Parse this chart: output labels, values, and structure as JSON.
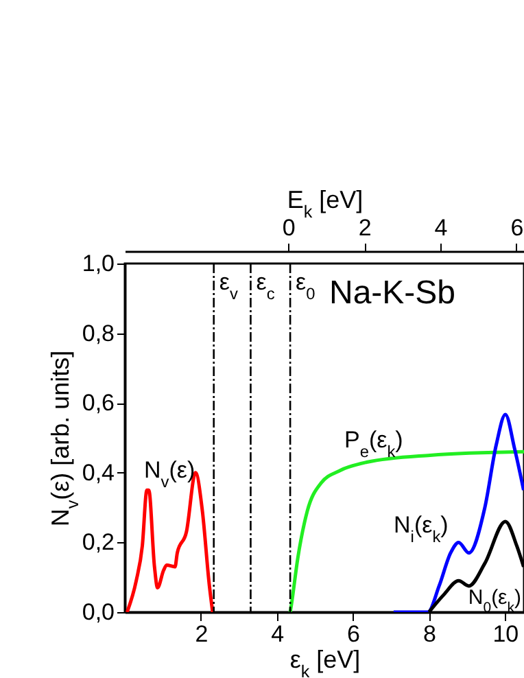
{
  "chart_data": {
    "type": "line",
    "xlabel": "ε$_{k}$ [eV]",
    "ylabel": "N$_{v}$(ε) [arb. units]",
    "x2label": "E$_{k}$ [eV]",
    "xlim": [
      0,
      10.5
    ],
    "xticks": [
      2,
      4,
      6,
      8,
      10
    ],
    "x2lim": [
      -4.3,
      6.2
    ],
    "x2ticks": [
      0,
      2,
      4,
      6
    ],
    "ylim": [
      0,
      1
    ],
    "yticks": [
      {
        "value": 0,
        "label": "0,0"
      },
      {
        "value": 0.2,
        "label": "0,2"
      },
      {
        "value": 0.4,
        "label": "0,4"
      },
      {
        "value": 0.6,
        "label": "0,6"
      },
      {
        "value": 0.8,
        "label": "0,8"
      },
      {
        "value": 1,
        "label": "1,0"
      }
    ],
    "grid": false,
    "legend": false,
    "marker": "none",
    "line_style": "solid",
    "series": [
      {
        "color": "#ff0000",
        "x": [
          0.06,
          0.3,
          0.46,
          0.58,
          0.63,
          0.78,
          0.86,
          1.02,
          1.1,
          1.32,
          1.38,
          1.62,
          1.86,
          2.04,
          2.22,
          2.31
        ],
        "values": [
          0,
          0.09,
          0.19,
          0.35,
          0.35,
          0.13,
          0.07,
          0.12,
          0.135,
          0.13,
          0.17,
          0.23,
          0.4,
          0.29,
          0.08,
          0
        ]
      },
      {
        "color": "#22ee22",
        "x": [
          4.35,
          4.38,
          4.55,
          4.8,
          5.16,
          5.64,
          6.36,
          8.03,
          10.5
        ],
        "values": [
          0,
          0.02,
          0.155,
          0.29,
          0.37,
          0.405,
          0.43,
          0.45,
          0.46
        ]
      },
      {
        "color": "#0000ff",
        "x": [
          7.07,
          7.97,
          8.27,
          8.57,
          8.78,
          9.05,
          9.47,
          9.77,
          10.01,
          10.25,
          10.49
        ],
        "values": [
          0,
          0,
          0.076,
          0.17,
          0.2,
          0.17,
          0.3,
          0.48,
          0.567,
          0.47,
          0.35
        ]
      },
      {
        "color": "#000000",
        "x": [
          8.0,
          8.39,
          8.78,
          9.05,
          9.47,
          10.01,
          10.31,
          10.49
        ],
        "values": [
          0,
          0.05,
          0.09,
          0.075,
          0.14,
          0.26,
          0.19,
          0.13
        ]
      }
    ],
    "ref_lines": [
      {
        "axis": "x",
        "value": 2.34,
        "label": "ε$_{v}$",
        "color": "#000000",
        "line_style": "dashed"
      },
      {
        "axis": "x",
        "value": 3.31,
        "label": "ε$_{c}$",
        "color": "#000000",
        "line_style": "dashed"
      },
      {
        "axis": "x",
        "value": 4.35,
        "label": "ε$_{0}$",
        "color": "#000000",
        "line_style": "dashed"
      }
    ],
    "annotations": [
      "Na-K-Sb",
      "N$_{v}$(ε)",
      "P$_{e}$(ε$_{k}$)",
      "N$_{i}$(ε$_{k}$)",
      "N$_{0}$(ε$_{k}$)"
    ]
  }
}
